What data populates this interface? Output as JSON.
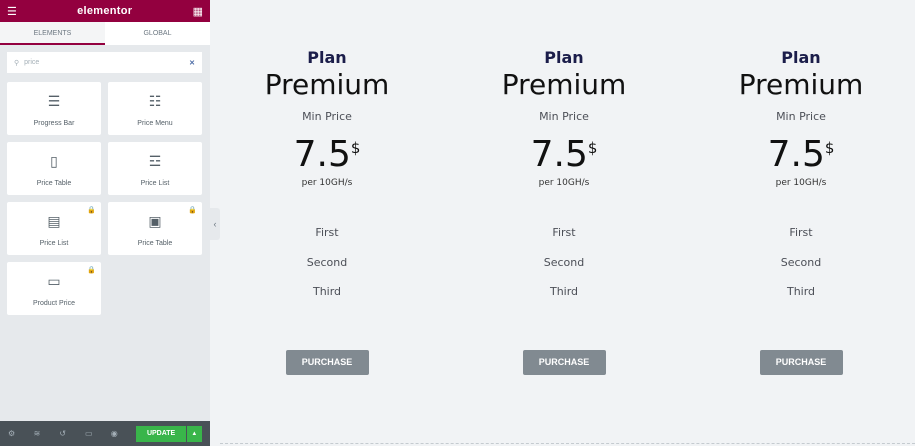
{
  "app": {
    "logo": "elementor",
    "menu_icon": "hamburger-icon",
    "apps_icon": "grid-icon"
  },
  "tabs": [
    {
      "label": "ELEMENTS",
      "active": true
    },
    {
      "label": "GLOBAL",
      "active": false
    }
  ],
  "search": {
    "value": "price",
    "clear_icon": "close-icon"
  },
  "widgets": [
    {
      "label": "Progress Bar",
      "icon": "☰",
      "locked": false
    },
    {
      "label": "Price Menu",
      "icon": "☷",
      "locked": false
    },
    {
      "label": "Price Table",
      "icon": "▯",
      "locked": false
    },
    {
      "label": "Price List",
      "icon": "☲",
      "locked": false
    },
    {
      "label": "Price List",
      "icon": "▤",
      "locked": true
    },
    {
      "label": "Price Table",
      "icon": "▣",
      "locked": true
    },
    {
      "label": "Product Price",
      "icon": "▭",
      "locked": true
    }
  ],
  "footer": {
    "update": "UPDATE",
    "icons": [
      "settings-icon",
      "layers-icon",
      "history-icon",
      "responsive-icon",
      "preview-icon"
    ]
  },
  "colors": {
    "brand": "#93003f",
    "update": "#39b54a",
    "button": "#818a91"
  },
  "plans": [
    {
      "plan": "Plan",
      "name": "Premium",
      "min": "Min Price",
      "price": "7.5",
      "currency": "$",
      "period": "per 10GH/s",
      "features": [
        "First",
        "Second",
        "Third"
      ],
      "button": "PURCHASE"
    },
    {
      "plan": "Plan",
      "name": "Premium",
      "min": "Min Price",
      "price": "7.5",
      "currency": "$",
      "period": "per 10GH/s",
      "features": [
        "First",
        "Second",
        "Third"
      ],
      "button": "PURCHASE"
    },
    {
      "plan": "Plan",
      "name": "Premium",
      "min": "Min Price",
      "price": "7.5",
      "currency": "$",
      "period": "per 10GH/s",
      "features": [
        "First",
        "Second",
        "Third"
      ],
      "button": "PURCHASE"
    }
  ]
}
